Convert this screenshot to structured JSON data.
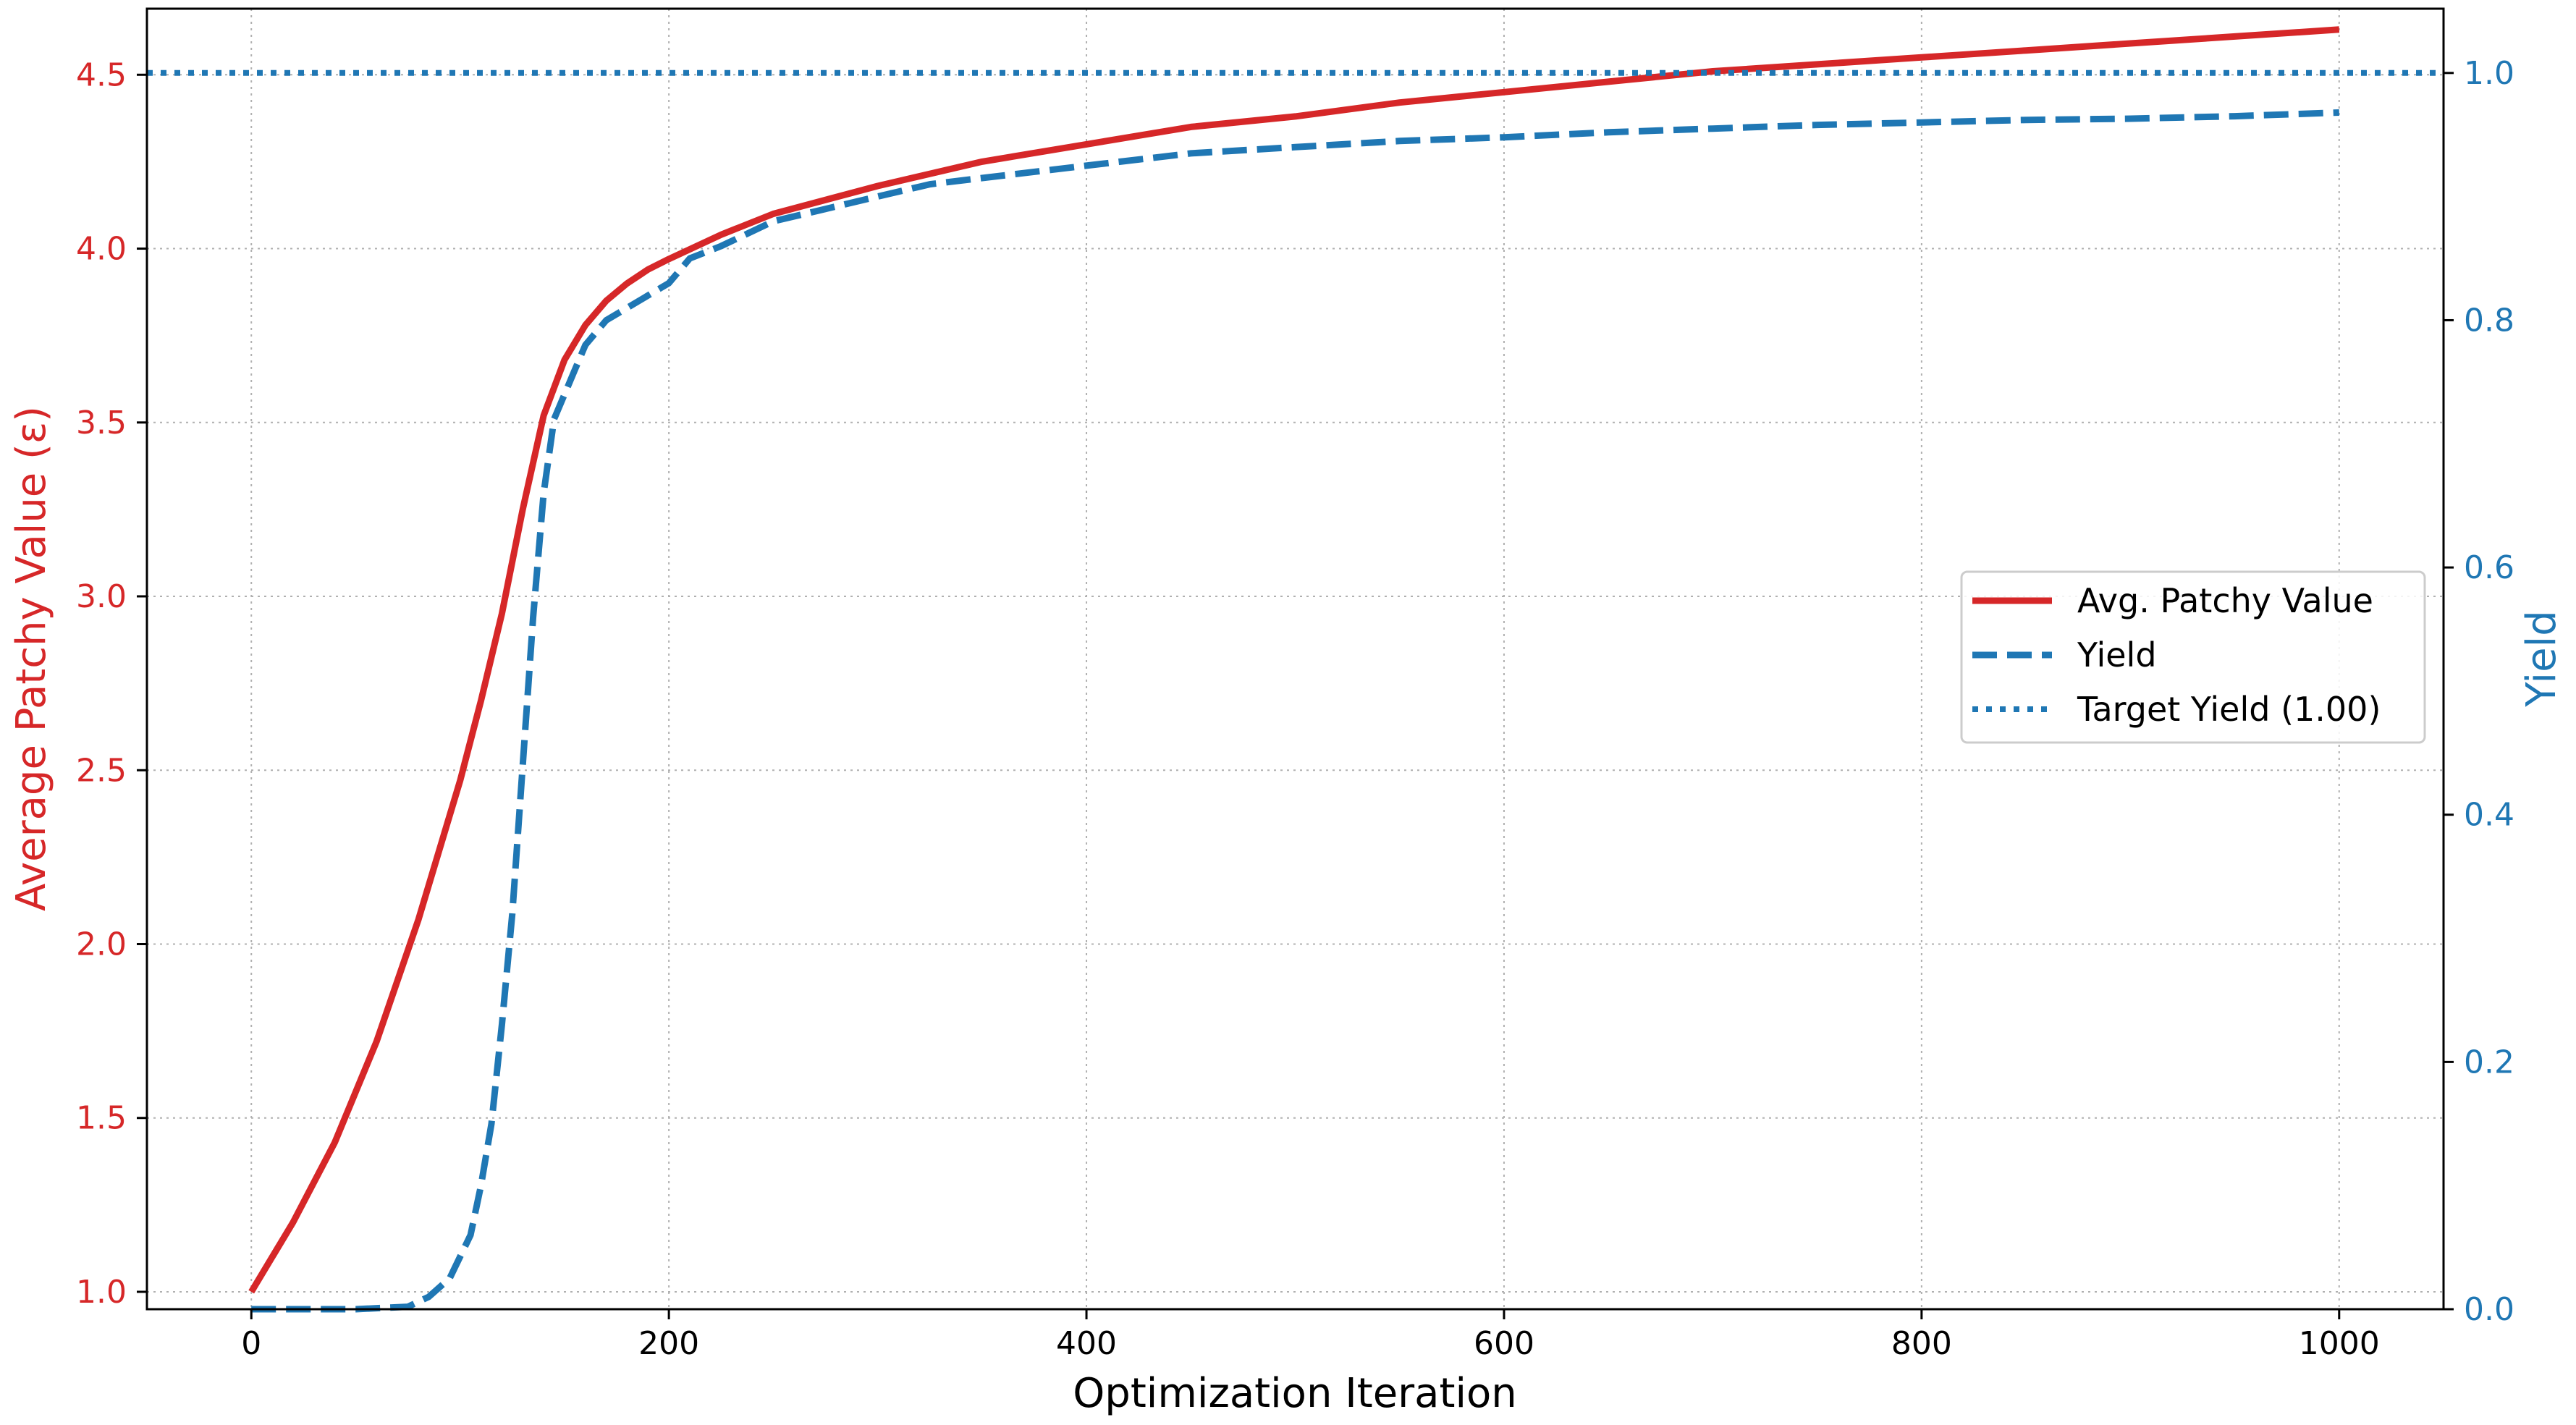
{
  "chart_data": {
    "type": "line",
    "title": "",
    "xlabel": "Optimization Iteration",
    "ylabel_left": "Average Patchy Value (ε)",
    "ylabel_right": "Yield",
    "xlim": [
      -50,
      1050
    ],
    "ylim_left": [
      0.95,
      4.69
    ],
    "ylim_right": [
      0.0,
      1.052
    ],
    "x_ticks": [
      "0",
      "200",
      "400",
      "600",
      "800",
      "1000"
    ],
    "x_tick_values": [
      0,
      200,
      400,
      600,
      800,
      1000
    ],
    "y_left_ticks": [
      "1.0",
      "1.5",
      "2.0",
      "2.5",
      "3.0",
      "3.5",
      "4.0",
      "4.5"
    ],
    "y_left_tick_values": [
      1.0,
      1.5,
      2.0,
      2.5,
      3.0,
      3.5,
      4.0,
      4.5
    ],
    "y_right_ticks": [
      "0.0",
      "0.2",
      "0.4",
      "0.6",
      "0.8",
      "1.0"
    ],
    "y_right_tick_values": [
      0.0,
      0.2,
      0.4,
      0.6,
      0.8,
      1.0
    ],
    "grid": true,
    "legend_position": "center-right",
    "series": [
      {
        "name": "Avg. Patchy Value",
        "axis": "left",
        "color": "#d62728",
        "style": "solid",
        "x": [
          0,
          20,
          40,
          60,
          80,
          100,
          110,
          120,
          130,
          140,
          150,
          160,
          170,
          180,
          190,
          200,
          225,
          250,
          300,
          350,
          400,
          450,
          500,
          550,
          600,
          650,
          700,
          750,
          800,
          850,
          900,
          950,
          1000
        ],
        "y": [
          1.0,
          1.2,
          1.43,
          1.72,
          2.07,
          2.47,
          2.7,
          2.95,
          3.25,
          3.52,
          3.68,
          3.78,
          3.85,
          3.9,
          3.94,
          3.97,
          4.04,
          4.1,
          4.18,
          4.25,
          4.3,
          4.35,
          4.38,
          4.42,
          4.45,
          4.48,
          4.51,
          4.53,
          4.55,
          4.57,
          4.59,
          4.61,
          4.63
        ]
      },
      {
        "name": "Yield",
        "axis": "right",
        "color": "#1f77b4",
        "style": "dashed",
        "x": [
          0,
          50,
          75,
          85,
          95,
          105,
          110,
          115,
          120,
          125,
          130,
          135,
          140,
          145,
          150,
          155,
          160,
          170,
          180,
          190,
          200,
          210,
          225,
          250,
          275,
          300,
          325,
          350,
          400,
          450,
          500,
          550,
          600,
          650,
          700,
          750,
          800,
          850,
          900,
          950,
          1000
        ],
        "y": [
          0.0,
          0.0,
          0.002,
          0.01,
          0.025,
          0.06,
          0.1,
          0.15,
          0.23,
          0.32,
          0.44,
          0.56,
          0.66,
          0.72,
          0.74,
          0.76,
          0.78,
          0.8,
          0.81,
          0.82,
          0.83,
          0.85,
          0.86,
          0.88,
          0.89,
          0.9,
          0.91,
          0.915,
          0.925,
          0.935,
          0.94,
          0.945,
          0.948,
          0.952,
          0.955,
          0.958,
          0.96,
          0.962,
          0.963,
          0.965,
          0.968
        ]
      },
      {
        "name": "Target Yield (1.00)",
        "axis": "right",
        "color": "#1f77b4",
        "style": "dotted",
        "x": [
          -50,
          1050
        ],
        "y": [
          1.0,
          1.0
        ]
      }
    ]
  }
}
